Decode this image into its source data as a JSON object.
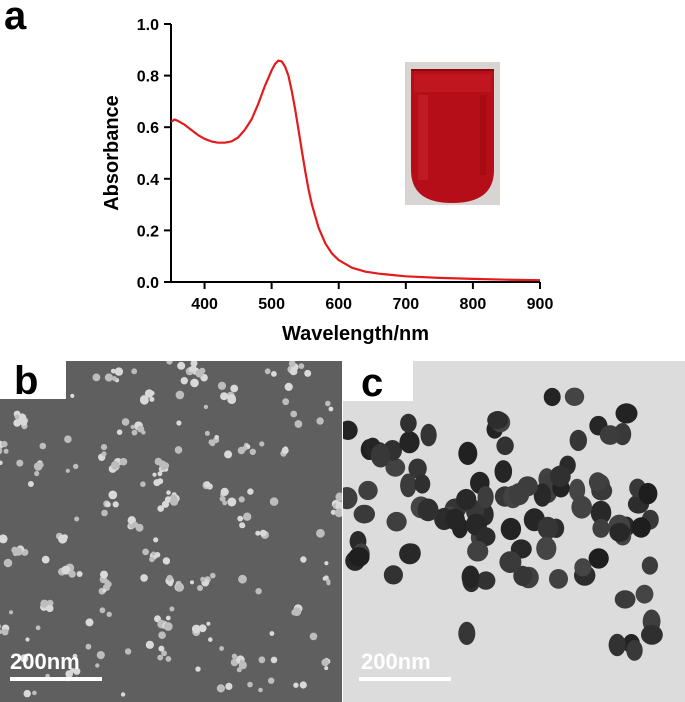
{
  "panels": {
    "a": {
      "label": "a"
    },
    "b": {
      "label": "b",
      "scale_bar": "200nm"
    },
    "c": {
      "label": "c",
      "scale_bar": "200nm"
    }
  },
  "chart_data": {
    "type": "line",
    "xlabel": "Wavelength/nm",
    "ylabel": "Absorbance",
    "xlim": [
      350,
      900
    ],
    "ylim": [
      0.0,
      1.0
    ],
    "xticks": [
      400,
      500,
      600,
      700,
      800,
      900
    ],
    "yticks": [
      0.0,
      0.2,
      0.4,
      0.6,
      0.8,
      1.0
    ],
    "ytick_labels": [
      "0.0",
      "0.2",
      "0.4",
      "0.6",
      "0.8",
      "1.0"
    ],
    "grid": false,
    "series": [
      {
        "color": "#e41a1c",
        "x": [
          350,
          355,
          360,
          370,
          380,
          390,
          400,
          410,
          420,
          430,
          440,
          450,
          460,
          470,
          480,
          490,
          500,
          505,
          510,
          515,
          520,
          525,
          530,
          535,
          540,
          545,
          550,
          555,
          560,
          570,
          580,
          590,
          600,
          620,
          640,
          660,
          680,
          700,
          750,
          800,
          850,
          900
        ],
        "y": [
          0.62,
          0.63,
          0.625,
          0.61,
          0.59,
          0.57,
          0.555,
          0.545,
          0.54,
          0.54,
          0.545,
          0.56,
          0.59,
          0.63,
          0.69,
          0.76,
          0.82,
          0.845,
          0.858,
          0.855,
          0.835,
          0.8,
          0.74,
          0.67,
          0.59,
          0.51,
          0.43,
          0.36,
          0.3,
          0.21,
          0.15,
          0.11,
          0.085,
          0.055,
          0.04,
          0.032,
          0.027,
          0.022,
          0.016,
          0.012,
          0.009,
          0.007
        ]
      }
    ]
  }
}
